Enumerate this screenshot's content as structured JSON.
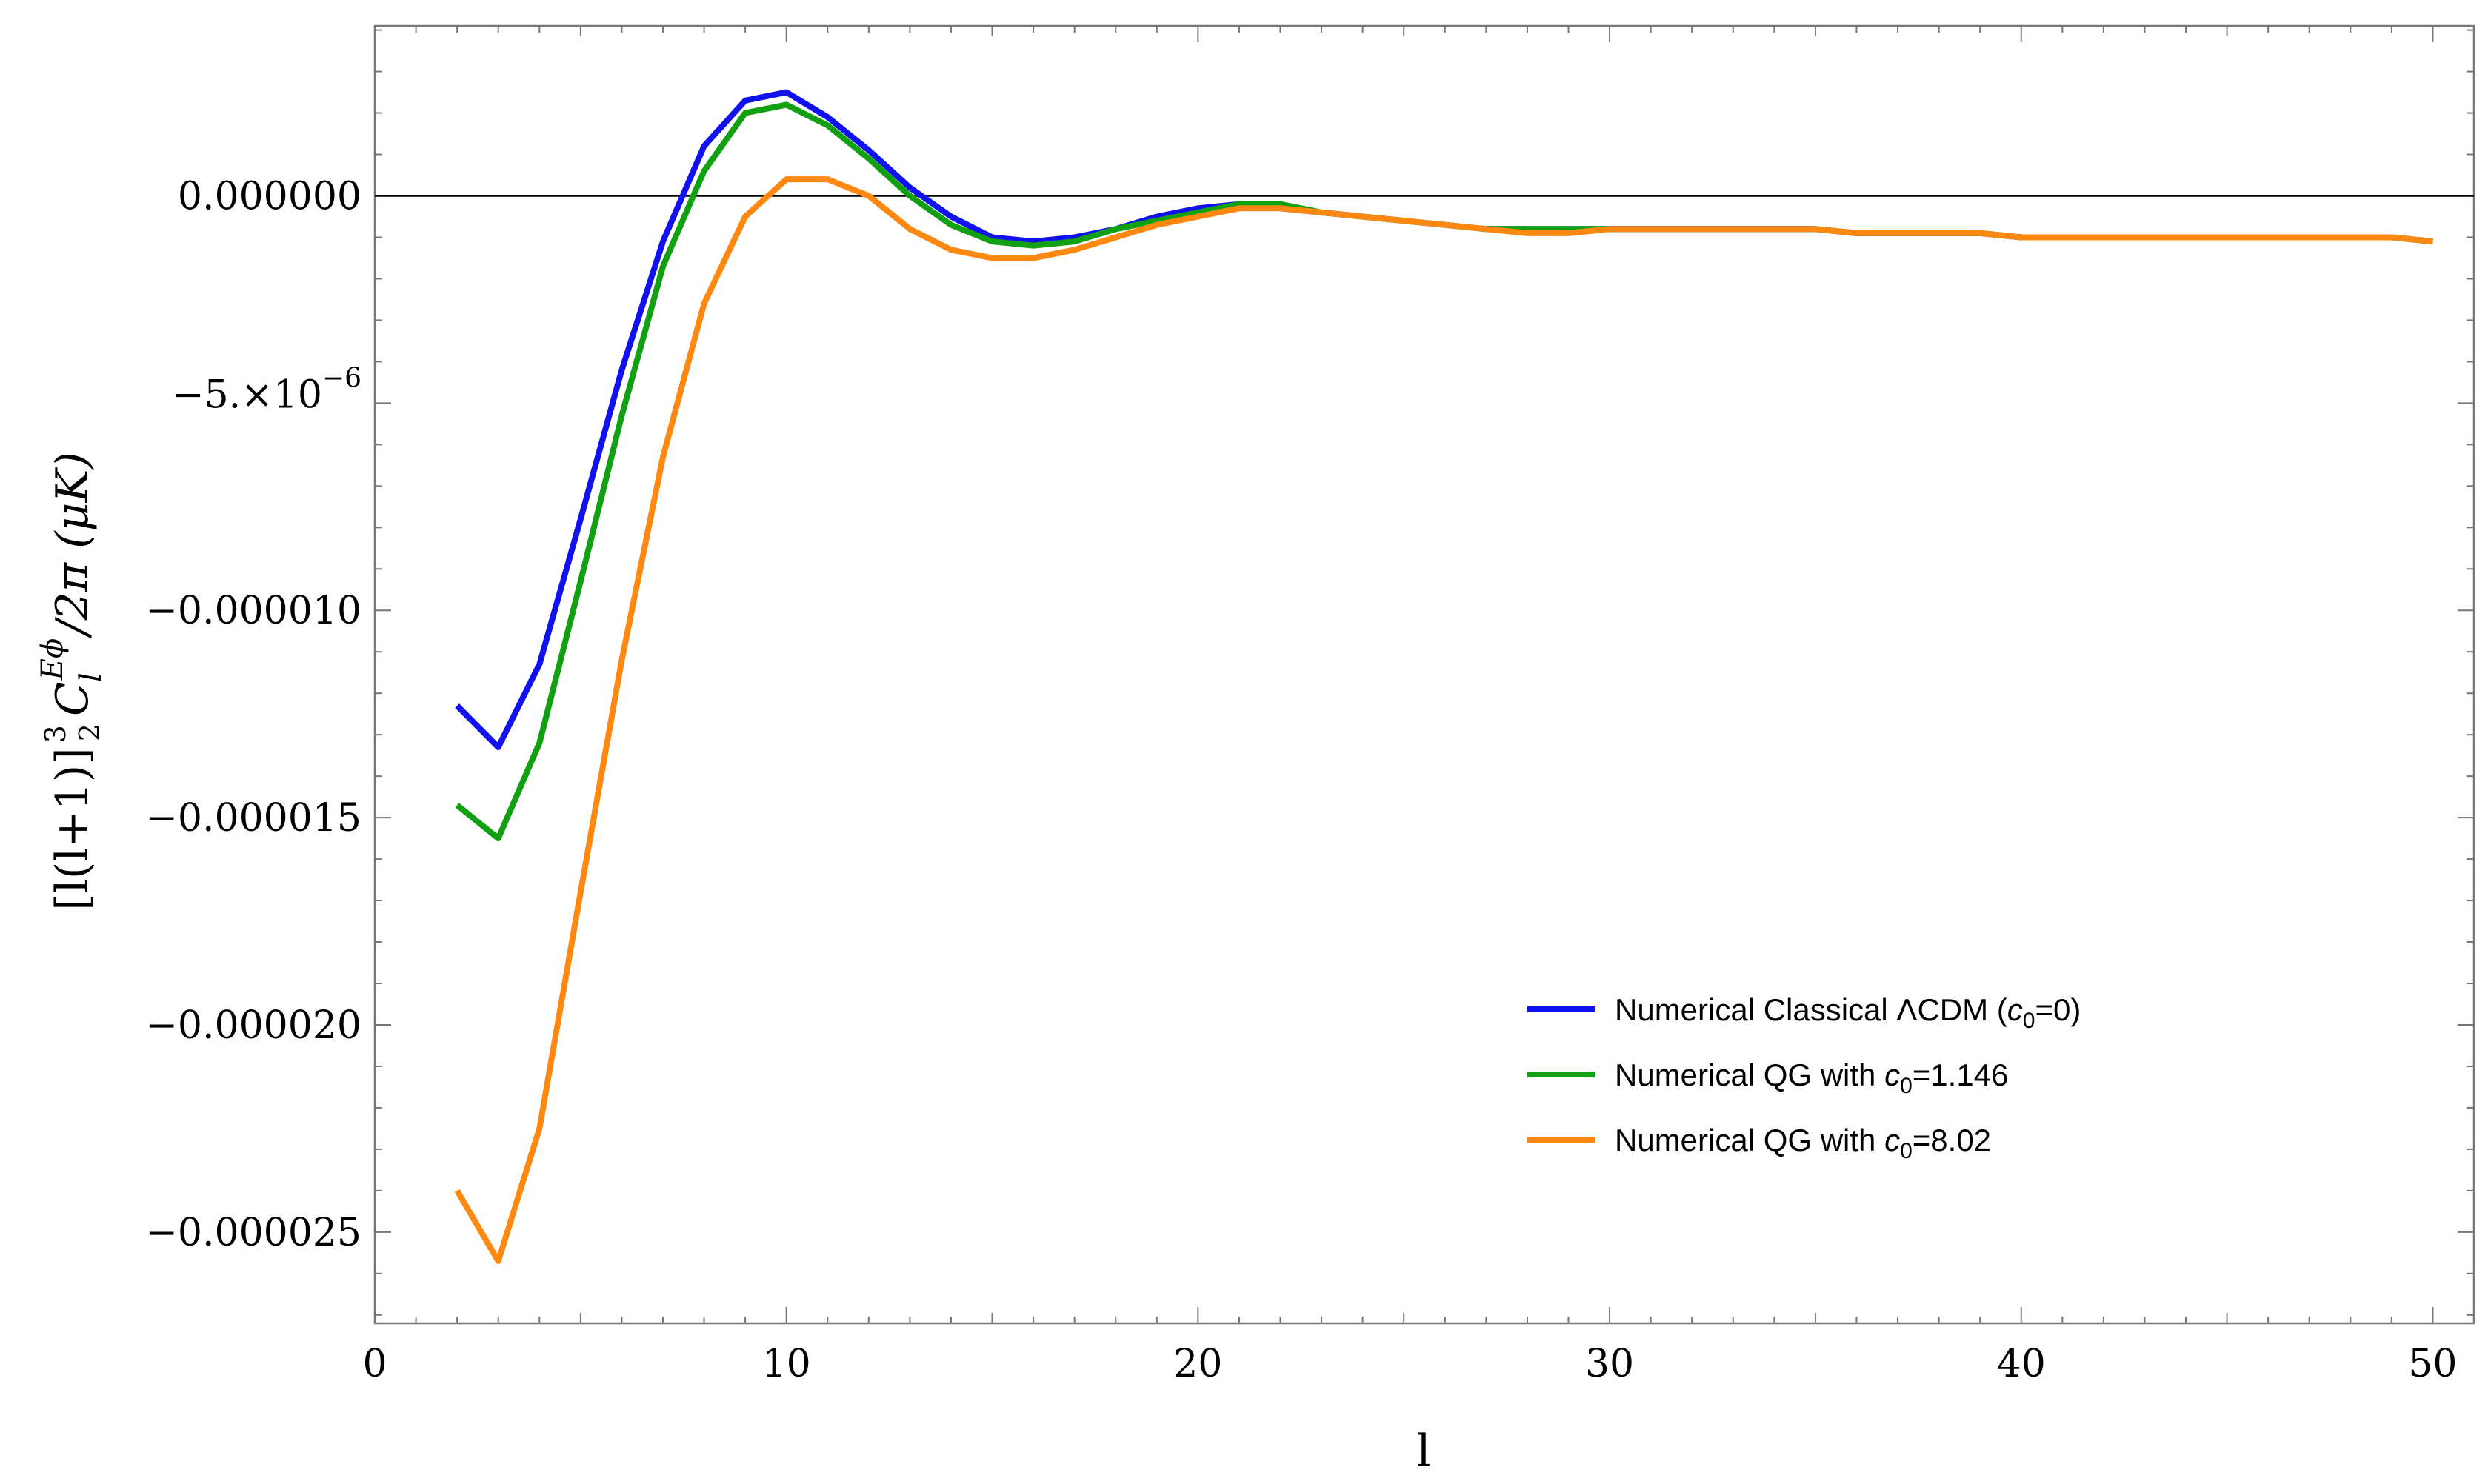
{
  "chart_data": {
    "type": "line",
    "title": "",
    "xlabel": "l",
    "ylabel": "[l(l+1)]^{3/2} C_l^{Eφ}/2π (μK)",
    "ylabel_parts": {
      "bracket": "[l(l+1)]",
      "exp_num": "3",
      "exp_den": "2",
      "C": "C",
      "sub": "l",
      "sup": "Eϕ",
      "rest": "/2π  (μK)"
    },
    "xlim": [
      0,
      51
    ],
    "ylim": [
      -2.72e-05,
      4.1e-06
    ],
    "grid": false,
    "legend_position": "lower-right",
    "x_ticks": [
      0,
      10,
      20,
      30,
      40,
      50
    ],
    "x_tick_labels": [
      "0",
      "10",
      "20",
      "30",
      "40",
      "50"
    ],
    "y_ticks": [
      0,
      -5e-06,
      -1e-05,
      -1.5e-05,
      -2e-05,
      -2.5e-05
    ],
    "y_tick_labels": [
      "0.000000",
      "−5.×10",
      "−0.000010",
      "−0.000015",
      "−0.000020",
      "−0.000025"
    ],
    "y_tick_exponent": "−6",
    "horizontal_reference_line": 0,
    "x": [
      2,
      3,
      4,
      5,
      6,
      7,
      8,
      9,
      10,
      11,
      12,
      13,
      14,
      15,
      16,
      17,
      18,
      19,
      20,
      21,
      22,
      23,
      24,
      25,
      26,
      27,
      28,
      29,
      30,
      31,
      32,
      33,
      34,
      35,
      36,
      37,
      38,
      39,
      40,
      41,
      42,
      43,
      44,
      45,
      46,
      47,
      48,
      49,
      50
    ],
    "series": [
      {
        "name": "Numerical Classical ΛCDM (c0=0)",
        "color": "#1111ee",
        "values": [
          -1.23e-05,
          -1.33e-05,
          -1.13e-05,
          -7.8e-06,
          -4.2e-06,
          -1.1e-06,
          1.2e-06,
          2.3e-06,
          2.5e-06,
          1.9e-06,
          1.1e-06,
          2e-07,
          -5e-07,
          -1e-06,
          -1.1e-06,
          -1e-06,
          -8e-07,
          -5e-07,
          -3e-07,
          -2e-07,
          -3e-07,
          -4e-07,
          -5e-07,
          -6e-07,
          -7e-07,
          -8e-07,
          -8e-07,
          -8e-07,
          -8e-07,
          -8e-07,
          -8e-07,
          -8e-07,
          -8e-07,
          -8e-07,
          -9e-07,
          -9e-07,
          -9e-07,
          -9e-07,
          -1e-06,
          -1e-06,
          -1e-06,
          -1e-06,
          -1e-06,
          -1e-06,
          -1e-06,
          -1e-06,
          -1e-06,
          -1e-06,
          -1.1e-06
        ]
      },
      {
        "name": "Numerical QG with c0=1.146",
        "color": "#11a011",
        "values": [
          -1.47e-05,
          -1.55e-05,
          -1.32e-05,
          -9.3e-06,
          -5.3e-06,
          -1.7e-06,
          6e-07,
          2e-06,
          2.2e-06,
          1.7e-06,
          9e-07,
          0.0,
          -7e-07,
          -1.1e-06,
          -1.2e-06,
          -1.1e-06,
          -8e-07,
          -6e-07,
          -4e-07,
          -2e-07,
          -2e-07,
          -4e-07,
          -5e-07,
          -6e-07,
          -7e-07,
          -8e-07,
          -8e-07,
          -8e-07,
          -8e-07,
          -8e-07,
          -8e-07,
          -8e-07,
          -8e-07,
          -8e-07,
          -9e-07,
          -9e-07,
          -9e-07,
          -9e-07,
          -1e-06,
          -1e-06,
          -1e-06,
          -1e-06,
          -1e-06,
          -1e-06,
          -1e-06,
          -1e-06,
          -1e-06,
          -1e-06,
          -1.1e-06
        ]
      },
      {
        "name": "Numerical QG with c0=8.02",
        "color": "#ff8811",
        "values": [
          -2.4e-05,
          -2.57e-05,
          -2.25e-05,
          -1.68e-05,
          -1.12e-05,
          -6.3e-06,
          -2.6e-06,
          -5e-07,
          4e-07,
          4e-07,
          0.0,
          -8e-07,
          -1.3e-06,
          -1.5e-06,
          -1.5e-06,
          -1.3e-06,
          -1e-06,
          -7e-07,
          -5e-07,
          -3e-07,
          -3e-07,
          -4e-07,
          -5e-07,
          -6e-07,
          -7e-07,
          -8e-07,
          -9e-07,
          -9e-07,
          -8e-07,
          -8e-07,
          -8e-07,
          -8e-07,
          -8e-07,
          -8e-07,
          -9e-07,
          -9e-07,
          -9e-07,
          -9e-07,
          -1e-06,
          -1e-06,
          -1e-06,
          -1e-06,
          -1e-06,
          -1e-06,
          -1e-06,
          -1e-06,
          -1e-06,
          -1e-06,
          -1.1e-06
        ]
      }
    ],
    "legend": [
      {
        "prefix": "Numerical Classical ΛCDM (",
        "italic": "c",
        "sub": "0",
        "suffix": "=0)"
      },
      {
        "prefix": "Numerical QG with ",
        "italic": "c",
        "sub": "0",
        "suffix": "=1.146"
      },
      {
        "prefix": "Numerical QG with ",
        "italic": "c",
        "sub": "0",
        "suffix": "=8.02"
      }
    ]
  }
}
